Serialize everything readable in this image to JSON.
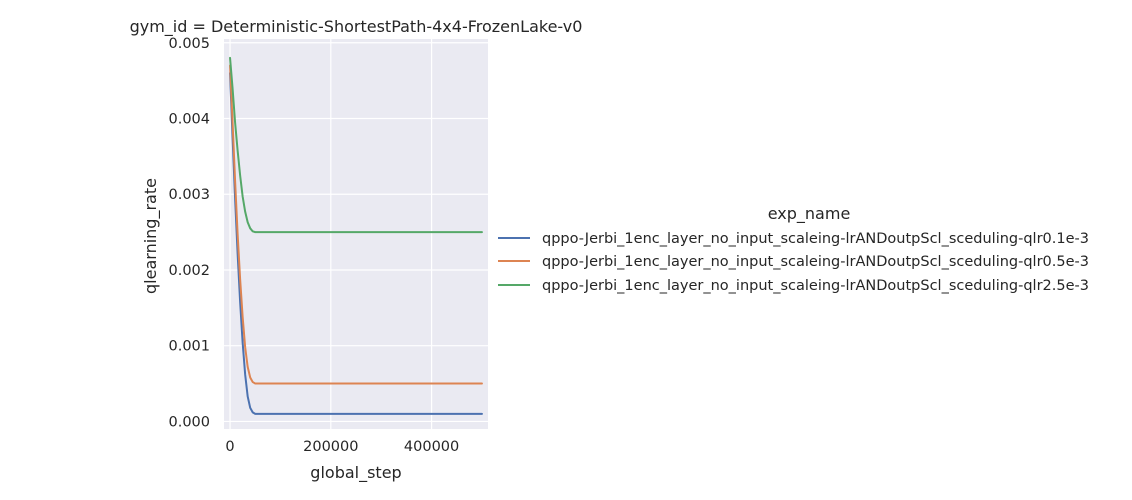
{
  "chart_data": {
    "type": "line",
    "title": "gym_id = Deterministic-ShortestPath-4x4-FrozenLake-v0",
    "xlabel": "global_step",
    "ylabel": "qlearning_rate",
    "xlim": [
      -12000,
      512000
    ],
    "ylim": [
      -0.0001,
      0.00505
    ],
    "xticks": [
      0,
      200000,
      400000
    ],
    "xtick_labels": [
      "0",
      "200000",
      "400000"
    ],
    "yticks": [
      0.0,
      0.001,
      0.002,
      0.003,
      0.004,
      0.005
    ],
    "ytick_labels": [
      "0.000",
      "0.001",
      "0.002",
      "0.003",
      "0.004",
      "0.005"
    ],
    "grid": true,
    "legend": {
      "title": "exp_name",
      "placement": "right-outside"
    },
    "series": [
      {
        "name": "qppo-Jerbi_1enc_layer_no_input_scaleing-lrANDoutpScl_sceduling-qlr0.1e-3",
        "color": "#4c72b0",
        "x": [
          0,
          5000,
          10000,
          15000,
          20000,
          25000,
          30000,
          35000,
          40000,
          45000,
          50000,
          55000,
          60000,
          100000,
          200000,
          300000,
          400000,
          500000
        ],
        "y": [
          0.0046,
          0.00375,
          0.00295,
          0.00222,
          0.00158,
          0.00104,
          0.00062,
          0.00033,
          0.00018,
          0.00012,
          0.0001,
          0.0001,
          0.0001,
          0.0001,
          0.0001,
          0.0001,
          0.0001,
          0.0001
        ]
      },
      {
        "name": "qppo-Jerbi_1enc_layer_no_input_scaleing-lrANDoutpScl_sceduling-qlr0.5e-3",
        "color": "#dd8452",
        "x": [
          0,
          5000,
          10000,
          15000,
          20000,
          25000,
          30000,
          35000,
          40000,
          45000,
          50000,
          55000,
          60000,
          100000,
          200000,
          300000,
          400000,
          500000
        ],
        "y": [
          0.0047,
          0.00395,
          0.00318,
          0.00248,
          0.00188,
          0.00138,
          0.00098,
          0.00072,
          0.00058,
          0.00052,
          0.0005,
          0.0005,
          0.0005,
          0.0005,
          0.0005,
          0.0005,
          0.0005,
          0.0005
        ]
      },
      {
        "name": "qppo-Jerbi_1enc_layer_no_input_scaleing-lrANDoutpScl_sceduling-qlr2.5e-3",
        "color": "#55a868",
        "x": [
          0,
          5000,
          10000,
          15000,
          20000,
          25000,
          30000,
          35000,
          40000,
          45000,
          50000,
          55000,
          60000,
          100000,
          200000,
          300000,
          400000,
          500000
        ],
        "y": [
          0.0048,
          0.0044,
          0.00395,
          0.00358,
          0.00325,
          0.00297,
          0.00277,
          0.00263,
          0.00255,
          0.00251,
          0.0025,
          0.0025,
          0.0025,
          0.0025,
          0.0025,
          0.0025,
          0.0025,
          0.0025
        ]
      }
    ]
  }
}
